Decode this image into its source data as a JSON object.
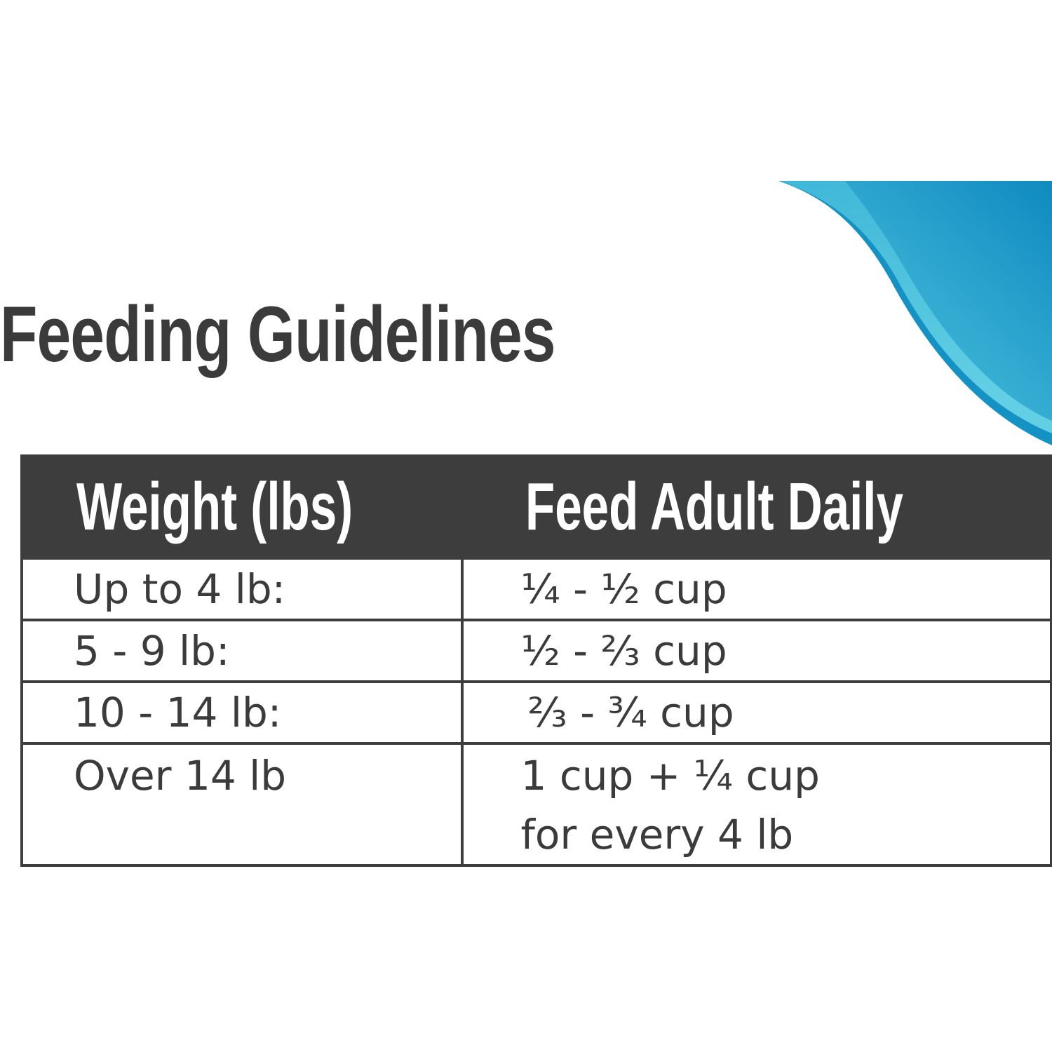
{
  "title": "Feeding Guidelines",
  "colors": {
    "swoosh_dark": "#1592c4",
    "swoosh_light": "#5ccbe2",
    "table_header": "#3d3d3d",
    "text": "#3b3b3b"
  },
  "table": {
    "headers": [
      "Weight (lbs)",
      "Feed Adult Daily"
    ],
    "rows": [
      {
        "weight": "Up to 4 lb:",
        "feed": "¼ - ½ cup"
      },
      {
        "weight": "5 - 9 lb:",
        "feed": "½ - ⅔ cup"
      },
      {
        "weight": "10 - 14 lb:",
        "feed": "⅔ - ¾ cup"
      },
      {
        "weight": "Over 14 lb",
        "feed": "1 cup + ¼ cup",
        "feed_line2": "for every 4 lb"
      }
    ]
  }
}
